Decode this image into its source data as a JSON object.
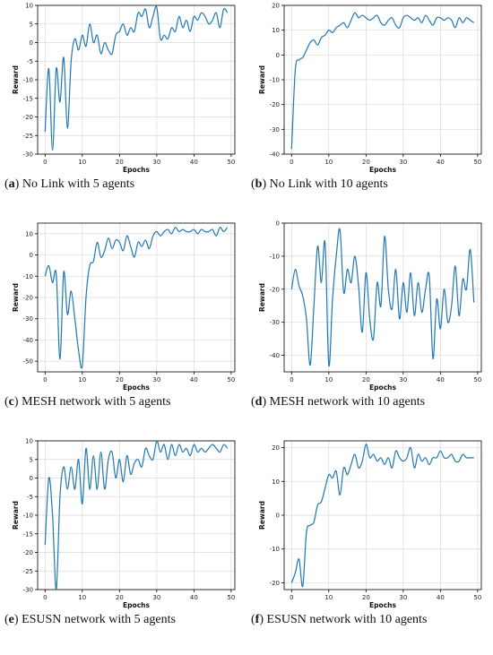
{
  "colors": {
    "line": "#1f77b4",
    "grid": "#d9d9d9",
    "axis": "#000000",
    "background": "#ffffff"
  },
  "chart_data": [
    {
      "type": "line",
      "caption_letter": "a",
      "caption_text": " No Link with 5 agents",
      "xlabel": "Epochs",
      "ylabel": "Reward",
      "xlim": [
        -2,
        51
      ],
      "ylim": [
        -30,
        10
      ],
      "grid": true,
      "xticks": [
        0,
        10,
        20,
        30,
        40,
        50
      ],
      "yticks": [
        -30,
        -25,
        -20,
        -15,
        -10,
        -5,
        0,
        5,
        10
      ],
      "series": [
        {
          "x": [
            0,
            1,
            2,
            3,
            4,
            5,
            6,
            7,
            8,
            9,
            10,
            11,
            12,
            13,
            14,
            15,
            16,
            17,
            18,
            19,
            20,
            21,
            22,
            23,
            24,
            25,
            26,
            27,
            28,
            29,
            30,
            31,
            32,
            33,
            34,
            35,
            36,
            37,
            38,
            39,
            40,
            41,
            42,
            43,
            44,
            45,
            46,
            47,
            48,
            49
          ],
          "y": [
            -24,
            -7,
            -29,
            -7,
            -16,
            -4,
            -23,
            -5,
            1,
            -2,
            2,
            -1,
            5,
            0,
            2,
            -3,
            0,
            -2,
            -3,
            2,
            3,
            5,
            2,
            4,
            3,
            8,
            7,
            9,
            4,
            7,
            9.5,
            1,
            2,
            1,
            4,
            3,
            7,
            4,
            6,
            3,
            7,
            6,
            8,
            7,
            5,
            6,
            8,
            4,
            9,
            8
          ]
        }
      ]
    },
    {
      "type": "line",
      "caption_letter": "b",
      "caption_text": " No Link with 10 agents",
      "xlabel": "Epochs",
      "ylabel": "Reward",
      "xlim": [
        -2,
        51
      ],
      "ylim": [
        -40,
        20
      ],
      "grid": true,
      "xticks": [
        0,
        10,
        20,
        30,
        40,
        50
      ],
      "yticks": [
        -40,
        -30,
        -20,
        -10,
        0,
        10,
        20
      ],
      "series": [
        {
          "x": [
            0,
            1,
            2,
            3,
            4,
            5,
            6,
            7,
            8,
            9,
            10,
            11,
            12,
            13,
            14,
            15,
            16,
            17,
            18,
            19,
            20,
            21,
            22,
            23,
            24,
            25,
            26,
            27,
            28,
            29,
            30,
            31,
            32,
            33,
            34,
            35,
            36,
            37,
            38,
            39,
            40,
            41,
            42,
            43,
            44,
            45,
            46,
            47,
            48,
            49
          ],
          "y": [
            -38,
            -6,
            -2,
            -1,
            2,
            5,
            6,
            4,
            7,
            8,
            10,
            9,
            11,
            12,
            13,
            11,
            14,
            17,
            15,
            16,
            15,
            14,
            15,
            16,
            13,
            12,
            14,
            15,
            12,
            11,
            15,
            16,
            15,
            14,
            15,
            13,
            16,
            14,
            12,
            15,
            15,
            14,
            15,
            14,
            11,
            15,
            13,
            15,
            14,
            13
          ]
        }
      ]
    },
    {
      "type": "line",
      "caption_letter": "c",
      "caption_text": " MESH network with 5 agents",
      "xlabel": "Epochs",
      "ylabel": "Reward",
      "xlim": [
        -2,
        51
      ],
      "ylim": [
        -55,
        15
      ],
      "grid": true,
      "xticks": [
        0,
        10,
        20,
        30,
        40,
        50
      ],
      "yticks": [
        -50,
        -40,
        -30,
        -20,
        -10,
        0,
        10
      ],
      "series": [
        {
          "x": [
            0,
            1,
            2,
            3,
            4,
            5,
            6,
            7,
            8,
            9,
            10,
            11,
            12,
            13,
            14,
            15,
            16,
            17,
            18,
            19,
            20,
            21,
            22,
            23,
            24,
            25,
            26,
            27,
            28,
            29,
            30,
            31,
            32,
            33,
            34,
            35,
            36,
            37,
            38,
            39,
            40,
            41,
            42,
            43,
            44,
            45,
            46,
            47,
            48,
            49
          ],
          "y": [
            -10,
            -5,
            -13,
            -9,
            -49,
            -8,
            -28,
            -17,
            -30,
            -45,
            -52,
            -20,
            -5,
            -3,
            6,
            -1,
            2,
            8,
            3,
            7,
            6,
            2,
            9,
            4,
            -1,
            6,
            4,
            7,
            3,
            9,
            11,
            9,
            11,
            12,
            10,
            13,
            11,
            12,
            11,
            11,
            12,
            10,
            12,
            11,
            11,
            12,
            9,
            13,
            11,
            13
          ]
        }
      ]
    },
    {
      "type": "line",
      "caption_letter": "d",
      "caption_text": " MESH network with 10 agents",
      "xlabel": "Epochs",
      "ylabel": "Reward",
      "xlim": [
        -2,
        51
      ],
      "ylim": [
        -45,
        0
      ],
      "grid": true,
      "xticks": [
        0,
        10,
        20,
        30,
        40,
        50
      ],
      "yticks": [
        -40,
        -30,
        -20,
        -10,
        0
      ],
      "series": [
        {
          "x": [
            0,
            1,
            2,
            3,
            4,
            5,
            6,
            7,
            8,
            9,
            10,
            11,
            12,
            13,
            14,
            15,
            16,
            17,
            18,
            19,
            20,
            21,
            22,
            23,
            24,
            25,
            26,
            27,
            28,
            29,
            30,
            31,
            32,
            33,
            34,
            35,
            36,
            37,
            38,
            39,
            40,
            41,
            42,
            43,
            44,
            45,
            46,
            47,
            48,
            49
          ],
          "y": [
            -20,
            -14,
            -19,
            -22,
            -29,
            -43,
            -25,
            -7,
            -18,
            -6,
            -43,
            -23,
            -10,
            -2,
            -21,
            -14,
            -18,
            -10,
            -19,
            -33,
            -15,
            -29,
            -35,
            -18,
            -25,
            -4,
            -20,
            -26,
            -14,
            -29,
            -18,
            -27,
            -15,
            -28,
            -18,
            -27,
            -20,
            -16,
            -41,
            -23,
            -32,
            -20,
            -30,
            -25,
            -13,
            -28,
            -17,
            -20,
            -8,
            -24
          ]
        }
      ]
    },
    {
      "type": "line",
      "caption_letter": "e",
      "caption_text": " ESUSN network with 5 agents",
      "xlabel": "Epochs",
      "ylabel": "Reward",
      "xlim": [
        -2,
        51
      ],
      "ylim": [
        -30,
        10
      ],
      "grid": true,
      "xticks": [
        0,
        10,
        20,
        30,
        40,
        50
      ],
      "yticks": [
        -30,
        -25,
        -20,
        -15,
        -10,
        -5,
        0,
        5,
        10
      ],
      "series": [
        {
          "x": [
            0,
            1,
            2,
            3,
            4,
            5,
            6,
            7,
            8,
            9,
            10,
            11,
            12,
            13,
            14,
            15,
            16,
            17,
            18,
            19,
            20,
            21,
            22,
            23,
            24,
            25,
            26,
            27,
            28,
            29,
            30,
            31,
            32,
            33,
            34,
            35,
            36,
            37,
            38,
            39,
            40,
            41,
            42,
            43,
            44,
            45,
            46,
            47,
            48,
            49
          ],
          "y": [
            -18,
            0,
            -10,
            -30,
            -5,
            3,
            -3,
            3,
            -3,
            5,
            -7,
            8,
            -3,
            6,
            -3,
            7,
            -3,
            5,
            7,
            0,
            5,
            -1,
            6,
            1,
            4,
            5,
            3,
            8,
            6,
            5,
            10,
            7,
            9,
            5,
            9,
            6,
            9,
            7,
            8,
            6,
            9,
            7,
            8,
            7,
            8,
            9,
            8,
            7,
            9,
            8
          ]
        }
      ]
    },
    {
      "type": "line",
      "caption_letter": "f",
      "caption_text": " ESUSN network with 10 agents",
      "xlabel": "Epochs",
      "ylabel": "Reward",
      "xlim": [
        -2,
        51
      ],
      "ylim": [
        -22,
        22
      ],
      "grid": true,
      "xticks": [
        0,
        10,
        20,
        30,
        40,
        50
      ],
      "yticks": [
        -20,
        -10,
        0,
        10,
        20
      ],
      "series": [
        {
          "x": [
            0,
            1,
            2,
            3,
            4,
            5,
            6,
            7,
            8,
            9,
            10,
            11,
            12,
            13,
            14,
            15,
            16,
            17,
            18,
            19,
            20,
            21,
            22,
            23,
            24,
            25,
            26,
            27,
            28,
            29,
            30,
            31,
            32,
            33,
            34,
            35,
            36,
            37,
            38,
            39,
            40,
            41,
            42,
            43,
            44,
            45,
            46,
            47,
            48,
            49
          ],
          "y": [
            -20,
            -17,
            -13,
            -21,
            -5,
            -3,
            -2,
            3,
            4,
            8,
            12,
            11,
            13,
            6,
            14,
            12,
            15,
            18,
            14,
            16,
            21,
            17,
            18,
            16,
            17,
            15,
            17,
            14,
            19,
            17,
            16,
            17,
            20,
            14,
            18,
            16,
            17,
            15,
            17,
            17,
            19,
            17,
            17,
            18,
            16,
            16,
            18,
            17,
            17,
            17
          ]
        }
      ]
    }
  ]
}
